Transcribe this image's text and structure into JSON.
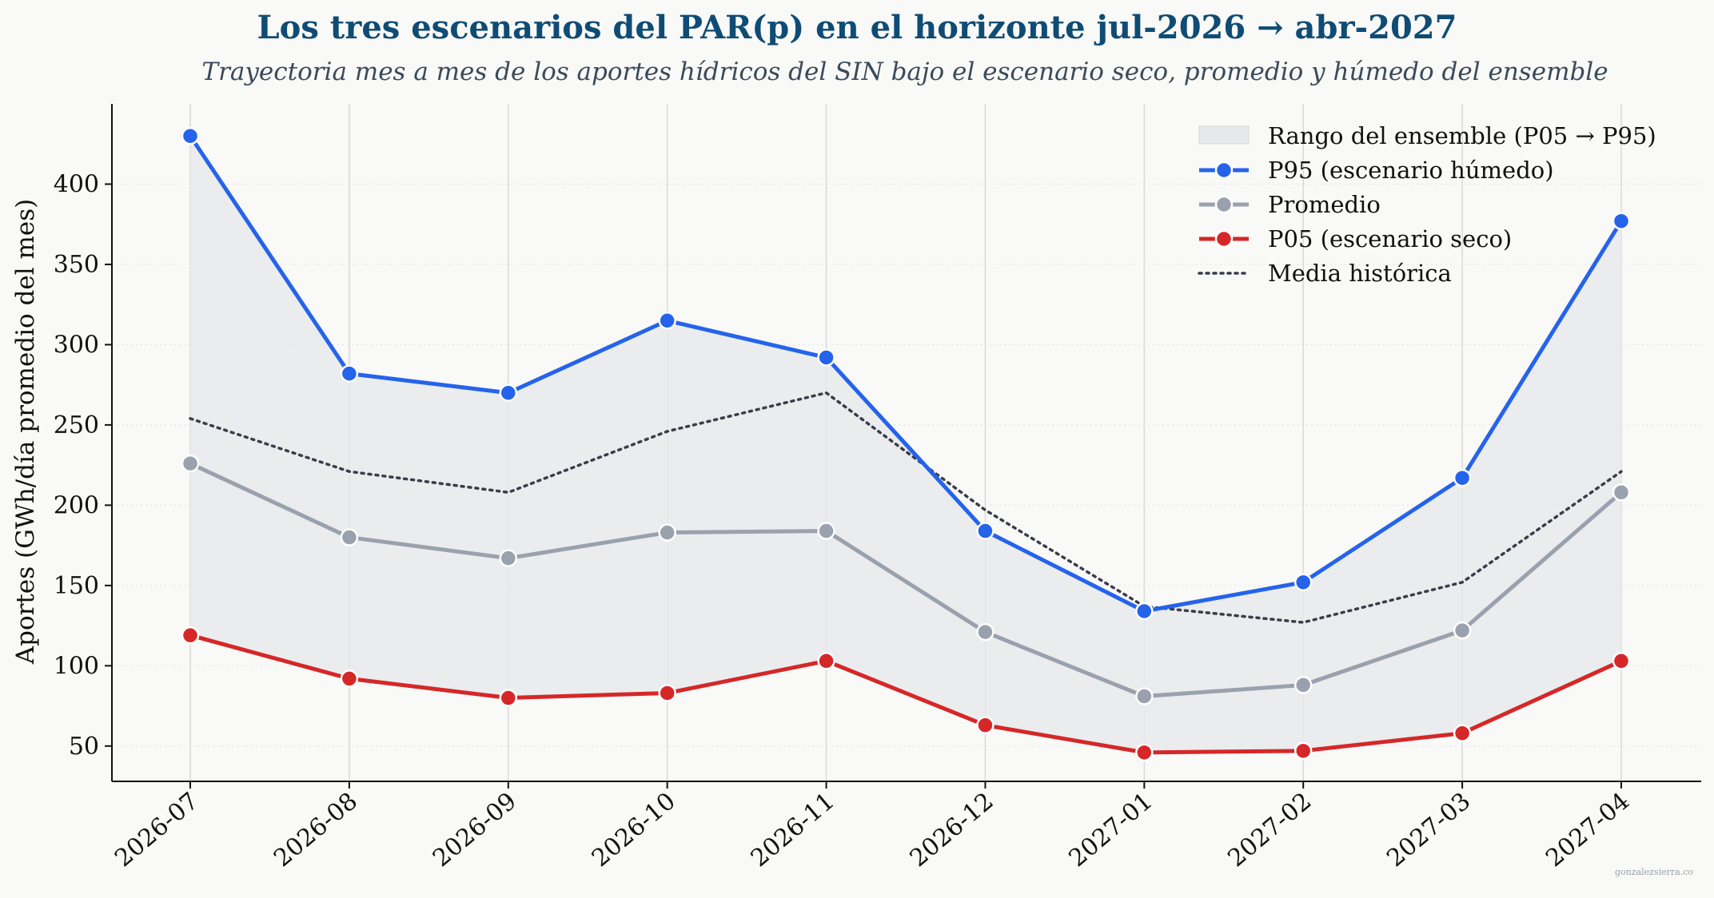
{
  "chart_data": {
    "type": "line",
    "title": "Los tres escenarios del PAR(p) en el horizonte jul-2026 → abr-2027",
    "subtitle": "Trayectoria mes a mes de los aportes hídricos del SIN bajo el escenario seco, promedio y húmedo del ensemble",
    "xlabel": "",
    "ylabel": "Aportes (GWh/día promedio del mes)",
    "categories": [
      "2026-07",
      "2026-08",
      "2026-09",
      "2026-10",
      "2026-11",
      "2026-12",
      "2027-01",
      "2027-02",
      "2027-03",
      "2027-04"
    ],
    "ylim": [
      28,
      450
    ],
    "yticks": [
      50,
      100,
      150,
      200,
      250,
      300,
      350,
      400
    ],
    "grid": true,
    "legend_position": "top-right",
    "band": {
      "name": "Rango del ensemble (P05 → P95)",
      "lower_series": "P05 (escenario seco)",
      "upper_series": "P95 (escenario húmedo)",
      "color": "#e6e9ea"
    },
    "series": [
      {
        "name": "P95 (escenario húmedo)",
        "color": "#2563eb",
        "style": "solid-markers",
        "values": [
          430,
          282,
          270,
          315,
          292,
          184,
          134,
          152,
          217,
          377
        ]
      },
      {
        "name": "Promedio",
        "color": "#9aa1ae",
        "style": "solid-markers",
        "values": [
          226,
          180,
          167,
          183,
          184,
          121,
          81,
          88,
          122,
          208
        ]
      },
      {
        "name": "P05 (escenario seco)",
        "color": "#d62728",
        "style": "solid-markers",
        "values": [
          119,
          92,
          80,
          83,
          103,
          63,
          46,
          47,
          58,
          103
        ]
      },
      {
        "name": "Media histórica",
        "color": "#3a3d4a",
        "style": "dotted",
        "values": [
          254,
          221,
          208,
          246,
          270,
          197,
          137,
          127,
          152,
          221
        ]
      }
    ]
  },
  "watermark": "gonzalezsierra.co"
}
